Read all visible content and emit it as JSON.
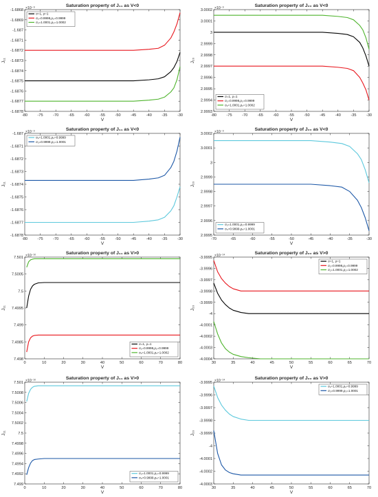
{
  "chart_data": [
    {
      "type": "line",
      "title": "Saturation property of J₁₁ as V<0",
      "xlabel": "V",
      "ylabel": "J₁₁",
      "xlim": [
        -80,
        -30
      ],
      "ylim": [
        -1.6878,
        -1.6868
      ],
      "multiplier": "×10⁻⁹",
      "xticks": [
        -80,
        -75,
        -70,
        -65,
        -60,
        -55,
        -50,
        -45,
        -40,
        -35,
        -30
      ],
      "yticks": [
        "-1.6868",
        "-1.6869",
        "-1.687",
        "-1.6871",
        "-1.6872",
        "-1.6873",
        "-1.6874",
        "-1.6875",
        "-1.6876",
        "-1.6877",
        "-1.6878"
      ],
      "grid": false,
      "legend_position": "top-left",
      "series": [
        {
          "name": "σ=1, ρ=1",
          "color": "#000000",
          "x": [
            -80,
            -60,
            -45,
            -40,
            -37,
            -35,
            -33,
            -32,
            -31,
            -30
          ],
          "y": [
            -1.6875,
            -1.6875,
            -1.6875,
            -1.68749,
            -1.68748,
            -1.68746,
            -1.68741,
            -1.68737,
            -1.68731,
            -1.68722
          ]
        },
        {
          "name": "σ₁=0.9998,ρ₁=0.9999",
          "color": "#e8141b",
          "x": [
            -80,
            -60,
            -45,
            -40,
            -37,
            -35,
            -33,
            -32,
            -31,
            -30
          ],
          "y": [
            -1.6872,
            -1.6872,
            -1.6872,
            -1.68719,
            -1.68718,
            -1.68715,
            -1.68708,
            -1.68702,
            -1.68694,
            -1.68683
          ]
        },
        {
          "name": "σ₂=1.0001,ρ₂=1.0002",
          "color": "#4db32b",
          "x": [
            -80,
            -60,
            -45,
            -40,
            -37,
            -35,
            -33,
            -32,
            -31,
            -30
          ],
          "y": [
            -1.6877,
            -1.6877,
            -1.6877,
            -1.68769,
            -1.68768,
            -1.68766,
            -1.68761,
            -1.68757,
            -1.68749,
            -1.68736
          ]
        }
      ]
    },
    {
      "type": "line",
      "title": "Saturation property of J₂₀ as V<0",
      "xlabel": "V",
      "ylabel": "J₂₀",
      "xlim": [
        -80,
        -30
      ],
      "ylim": [
        2.9993,
        3.0002
      ],
      "multiplier": "×10⁻⁹",
      "xticks": [
        -80,
        -75,
        -70,
        -65,
        -60,
        -55,
        -50,
        -45,
        -40,
        -35,
        -30
      ],
      "yticks": [
        "3.0002",
        "3.0001",
        "3",
        "2.9999",
        "2.9998",
        "2.9997",
        "2.9996",
        "2.9995",
        "2.9994",
        "2.9993"
      ],
      "grid": false,
      "legend_position": "bottom-left",
      "series": [
        {
          "name": "σ=1, ρ=1",
          "color": "#000000",
          "x": [
            -80,
            -60,
            -45,
            -40,
            -37,
            -35,
            -33,
            -32,
            -31,
            -30
          ],
          "y": [
            3.0,
            3.0,
            3.0,
            2.99999,
            2.99998,
            2.99996,
            2.99991,
            2.99986,
            2.99979,
            2.9997
          ]
        },
        {
          "name": "σ₁=0.9998,ρ₁=0.9999",
          "color": "#e8141b",
          "x": [
            -80,
            -60,
            -45,
            -40,
            -37,
            -35,
            -33,
            -32,
            -31,
            -30
          ],
          "y": [
            2.9997,
            2.9997,
            2.9997,
            2.99969,
            2.99968,
            2.99966,
            2.9996,
            2.99955,
            2.99949,
            2.9994
          ]
        },
        {
          "name": "σ₂=1.0001,ρ₂=1.0002",
          "color": "#4db32b",
          "x": [
            -80,
            -60,
            -45,
            -40,
            -37,
            -35,
            -33,
            -32,
            -31,
            -30
          ],
          "y": [
            3.00015,
            3.00015,
            3.00015,
            3.00014,
            3.00013,
            3.00011,
            3.00006,
            3.00002,
            2.99995,
            2.99985
          ]
        }
      ]
    },
    {
      "type": "line",
      "title": "Saturation property of J₁₁ as V<0",
      "xlabel": "V",
      "ylabel": "J₁₁",
      "xlim": [
        -80,
        -30
      ],
      "ylim": [
        -1.6878,
        -1.687
      ],
      "multiplier": "×10⁻⁹",
      "xticks": [
        -80,
        -75,
        -70,
        -65,
        -60,
        -55,
        -50,
        -45,
        -40,
        -35,
        -30
      ],
      "yticks": [
        "-1.687",
        "-1.6871",
        "-1.6872",
        "-1.6873",
        "-1.6874",
        "-1.6875",
        "-1.6876",
        "-1.6877",
        "-1.6878"
      ],
      "grid": false,
      "legend_position": "top-left",
      "series": [
        {
          "name": "σ₂=1.0001,ρ₂=0.9999",
          "color": "#5bc8dc",
          "x": [
            -80,
            -60,
            -45,
            -40,
            -37,
            -35,
            -33,
            -32,
            -31,
            -30
          ],
          "y": [
            -1.6877,
            -1.6877,
            -1.6877,
            -1.68769,
            -1.68768,
            -1.68766,
            -1.68761,
            -1.68757,
            -1.6875,
            -1.68742
          ]
        },
        {
          "name": "σ₃=0.9999,ρ₃=1.0001",
          "color": "#1a56a6",
          "x": [
            -80,
            -60,
            -45,
            -40,
            -37,
            -35,
            -33,
            -32,
            -31,
            -30
          ],
          "y": [
            -1.68737,
            -1.68737,
            -1.68737,
            -1.68736,
            -1.68735,
            -1.68733,
            -1.68727,
            -1.68722,
            -1.68714,
            -1.68703
          ]
        }
      ]
    },
    {
      "type": "line",
      "title": "Saturation property of J₂₀ as V<0",
      "xlabel": "V",
      "ylabel": "J₂₀",
      "xlim": [
        -70,
        -30
      ],
      "ylim": [
        2.9995,
        3.0002
      ],
      "multiplier": "×10⁻⁹",
      "xticks": [
        -70,
        -65,
        -60,
        -55,
        -50,
        -45,
        -40,
        -35,
        -30
      ],
      "yticks": [
        "3.0002",
        "3.0001",
        "3",
        "2.9999",
        "2.9998",
        "2.9997",
        "2.9996",
        "2.9995"
      ],
      "grid": false,
      "legend_position": "bottom-left",
      "series": [
        {
          "name": "σ₂=1.0001,ρ₂=0.9999",
          "color": "#5bc8dc",
          "x": [
            -70,
            -55,
            -45,
            -40,
            -37,
            -35,
            -33,
            -32,
            -31,
            -30
          ],
          "y": [
            3.00015,
            3.00015,
            3.00015,
            3.00014,
            3.00013,
            3.00011,
            3.00006,
            3.00002,
            2.99995,
            2.99986
          ]
        },
        {
          "name": "σ₃=0.9999,ρ₃=1.0001",
          "color": "#1a56a6",
          "x": [
            -70,
            -55,
            -45,
            -40,
            -37,
            -35,
            -33,
            -32,
            -31,
            -30
          ],
          "y": [
            2.99985,
            2.99985,
            2.99985,
            2.99984,
            2.99983,
            2.9998,
            2.99974,
            2.99969,
            2.99962,
            2.99953
          ]
        }
      ]
    },
    {
      "type": "line",
      "title": "Saturation property of J₁₁ as V>0",
      "xlabel": "V",
      "ylabel": "J₁₁",
      "xlim": [
        0,
        80
      ],
      "ylim": [
        7.498,
        7.501
      ],
      "multiplier": "×10⁻¹⁰",
      "xticks": [
        0,
        10,
        20,
        30,
        40,
        50,
        60,
        70,
        80
      ],
      "yticks": [
        "7.501",
        "7.5005",
        "7.5",
        "7.4995",
        "7.499",
        "7.4985",
        "7.498"
      ],
      "grid": false,
      "legend_position": "bottom-right",
      "series": [
        {
          "name": "σ=1, ρ=1",
          "color": "#000000",
          "x": [
            1,
            2,
            3,
            4,
            5,
            7,
            10,
            15,
            20,
            40,
            80
          ],
          "y": [
            7.4995,
            7.49985,
            7.50005,
            7.50015,
            7.5002,
            7.50024,
            7.50025,
            7.50025,
            7.50025,
            7.50025,
            7.50025
          ]
        },
        {
          "name": "σ₁=0.9998,ρ₁=0.9999",
          "color": "#e8141b",
          "x": [
            1,
            2,
            3,
            4,
            5,
            7,
            10,
            15,
            20,
            40,
            80
          ],
          "y": [
            7.4982,
            7.4985,
            7.49862,
            7.49867,
            7.49869,
            7.4987,
            7.4987,
            7.4987,
            7.4987,
            7.4987,
            7.4987
          ]
        },
        {
          "name": "σ₂=1.0001,ρ₂=1.0002",
          "color": "#4db32b",
          "x": [
            1,
            2,
            3,
            4,
            5,
            7,
            10,
            15,
            20,
            40,
            80
          ],
          "y": [
            7.5007,
            7.50086,
            7.50092,
            7.50094,
            7.50095,
            7.50095,
            7.50095,
            7.50095,
            7.50095,
            7.50095,
            7.50095
          ]
        }
      ]
    },
    {
      "type": "line",
      "title": "Saturation property of J₂₀ as V>0",
      "xlabel": "V",
      "ylabel": "J₂₀",
      "xlim": [
        30,
        70
      ],
      "ylim": [
        -4.0004,
        -3.9995
      ],
      "multiplier": "×10⁻¹⁴",
      "xticks": [
        30,
        35,
        40,
        45,
        50,
        55,
        60,
        65,
        70
      ],
      "yticks": [
        "-3.9995",
        "-3.9996",
        "-3.9997",
        "-3.9998",
        "-3.9999",
        "-4",
        "-4.0001",
        "-4.0002",
        "-4.0003",
        "-4.0004"
      ],
      "grid": false,
      "legend_position": "top-right",
      "series": [
        {
          "name": "σ=1, ρ=1",
          "color": "#000000",
          "x": [
            30,
            31,
            32,
            33,
            34,
            35,
            37,
            39,
            42,
            50,
            70
          ],
          "y": [
            -3.99973,
            -3.99982,
            -3.99988,
            -3.99992,
            -3.99995,
            -3.99997,
            -3.99999,
            -4.0,
            -4.0,
            -4.0,
            -4.0
          ]
        },
        {
          "name": "σ₁=0.9998,ρ₁=0.9999",
          "color": "#e8141b",
          "x": [
            30,
            31,
            32,
            33,
            34,
            35,
            37,
            39,
            42,
            50,
            70
          ],
          "y": [
            -3.99953,
            -3.99963,
            -3.99969,
            -3.99973,
            -3.99976,
            -3.99978,
            -3.9998,
            -3.9998,
            -3.9998,
            -3.9998,
            -3.9998
          ]
        },
        {
          "name": "σ₂=1.0001,ρ₂=1.0002",
          "color": "#4db32b",
          "x": [
            30,
            31,
            32,
            33,
            34,
            35,
            37,
            39,
            42,
            50,
            70
          ],
          "y": [
            -4.00007,
            -4.00018,
            -4.00026,
            -4.00031,
            -4.00034,
            -4.00036,
            -4.00038,
            -4.00039,
            -4.0004,
            -4.0004,
            -4.0004
          ]
        }
      ]
    },
    {
      "type": "line",
      "title": "Saturation property of J₁₁ as V>0",
      "xlabel": "V",
      "ylabel": "J₁₁",
      "xlim": [
        0,
        80
      ],
      "ylim": [
        7.499,
        7.501
      ],
      "multiplier": "×10⁻¹⁰",
      "xticks": [
        0,
        10,
        20,
        30,
        40,
        50,
        60,
        70,
        80
      ],
      "yticks": [
        "7.501",
        "7.5008",
        "7.5006",
        "7.5004",
        "7.5002",
        "7.5",
        "7.4998",
        "7.4996",
        "7.4994",
        "7.4992",
        "7.499"
      ],
      "grid": false,
      "legend_position": "bottom-right",
      "series": [
        {
          "name": "σ₂=1.0001,ρ₂=0.9999",
          "color": "#5bc8dc",
          "x": [
            1,
            2,
            3,
            4,
            5,
            7,
            10,
            15,
            20,
            40,
            80
          ],
          "y": [
            7.50062,
            7.50078,
            7.50086,
            7.5009,
            7.50092,
            7.50093,
            7.50093,
            7.50093,
            7.50093,
            7.50093,
            7.50093
          ]
        },
        {
          "name": "σ₃=0.9999,ρ₃=1.0001",
          "color": "#1a56a6",
          "x": [
            1,
            2,
            3,
            4,
            5,
            7,
            10,
            15,
            20,
            40,
            80
          ],
          "y": [
            7.49918,
            7.49932,
            7.49941,
            7.49946,
            7.49948,
            7.49949,
            7.4995,
            7.4995,
            7.4995,
            7.4995,
            7.4995
          ]
        }
      ]
    },
    {
      "type": "line",
      "title": "Saturation property of J₂₀ as V>0",
      "xlabel": "V",
      "ylabel": "J₂₀",
      "xlim": [
        30,
        70
      ],
      "ylim": [
        -4.0003,
        -3.9995
      ],
      "multiplier": "×10⁻¹⁴",
      "xticks": [
        30,
        35,
        40,
        45,
        50,
        55,
        60,
        65,
        70
      ],
      "yticks": [
        "-3.9995",
        "-3.9996",
        "-3.9997",
        "-3.9998",
        "-3.9999",
        "-4",
        "-4.0001",
        "-4.0002",
        "-4.0003"
      ],
      "grid": false,
      "legend_position": "top-right",
      "series": [
        {
          "name": "σ₂=1.0001,ρ₂=0.9999",
          "color": "#5bc8dc",
          "x": [
            30,
            31,
            32,
            33,
            34,
            35,
            37,
            39,
            42,
            50,
            70
          ],
          "y": [
            -3.99953,
            -3.99962,
            -3.99968,
            -3.99972,
            -3.99975,
            -3.99977,
            -3.99979,
            -3.9998,
            -3.9998,
            -3.9998,
            -3.9998
          ]
        },
        {
          "name": "σ₃=0.9999,ρ₃=1.0001",
          "color": "#1a56a6",
          "x": [
            30,
            31,
            32,
            33,
            34,
            35,
            37,
            39,
            42,
            50,
            70
          ],
          "y": [
            -3.99988,
            -4.00006,
            -4.00015,
            -4.00019,
            -4.00021,
            -4.00022,
            -4.00023,
            -4.00023,
            -4.00023,
            -4.00023,
            -4.00023
          ]
        }
      ]
    }
  ]
}
